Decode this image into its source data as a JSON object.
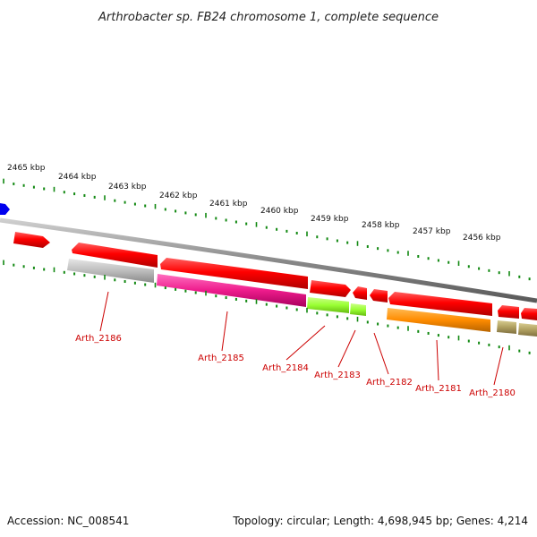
{
  "title": "Arthrobacter sp. FB24 chromosome 1, complete sequence",
  "footer": {
    "accession": "Accession: NC_008541",
    "summary": "Topology: circular; Length: 4,698,945 bp; Genes: 4,214"
  },
  "scale_labels": [
    "2465 kbp",
    "2464 kbp",
    "2463 kbp",
    "2462 kbp",
    "2461 kbp",
    "2460 kbp",
    "2459 kbp",
    "2458 kbp",
    "2457 kbp",
    "2456 kbp"
  ],
  "genes": [
    {
      "label": "Arth_2186",
      "color": "#c0c0c0"
    },
    {
      "label": "Arth_2185",
      "color": "#ee1c8c"
    },
    {
      "label": "Arth_2184",
      "color": "#99ff33"
    },
    {
      "label": "Arth_2183",
      "color": "#99ff33"
    },
    {
      "label": "Arth_2182",
      "color": "#ff0000"
    },
    {
      "label": "Arth_2181",
      "color": "#ff8c00"
    },
    {
      "label": "Arth_2180",
      "color": "#b0a060"
    }
  ],
  "colors": {
    "forward_strand": "#ff0000",
    "backbone": "#808080",
    "ticks": "#118811",
    "labels": "#cc0000",
    "blue_feature": "#0000ee"
  }
}
